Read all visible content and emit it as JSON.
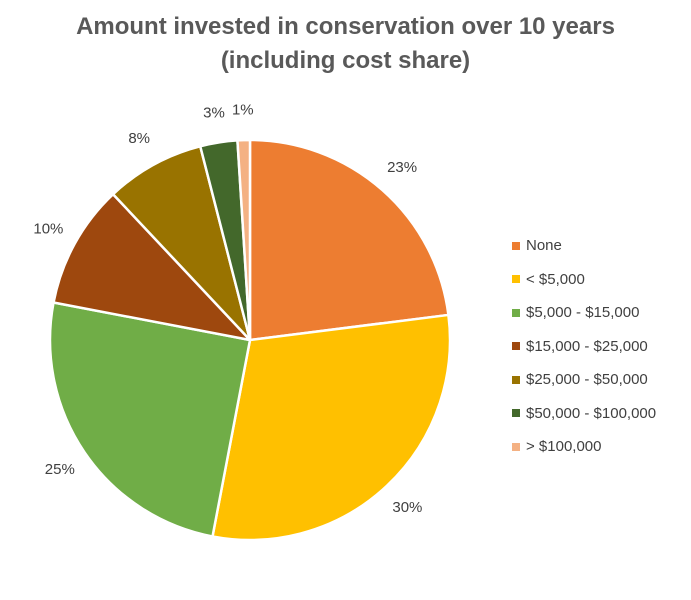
{
  "chart_data": {
    "type": "pie",
    "title_line1": "Amount invested in conservation over 10 years",
    "title_line2": "(including cost share)",
    "slices": [
      {
        "name": "None",
        "value": 23,
        "label": "23%",
        "color": "#ED7D31"
      },
      {
        "name": "< $5,000",
        "value": 30,
        "label": "30%",
        "color": "#FFC000"
      },
      {
        "name": "$5,000 - $15,000",
        "value": 25,
        "label": "25%",
        "color": "#70AD47"
      },
      {
        "name": "$15,000 - $25,000",
        "value": 10,
        "label": "10%",
        "color": "#9E480E"
      },
      {
        "name": "$25,000 - $50,000",
        "value": 8,
        "label": "8%",
        "color": "#997300"
      },
      {
        "name": "$50,000 - $100,000",
        "value": 3,
        "label": "3%",
        "color": "#43682B"
      },
      {
        "name": "> $100,000",
        "value": 1,
        "label": "1%",
        "color": "#F4B183"
      }
    ],
    "legend_position": "right",
    "start_angle": "12 o'clock",
    "direction": "clockwise"
  }
}
